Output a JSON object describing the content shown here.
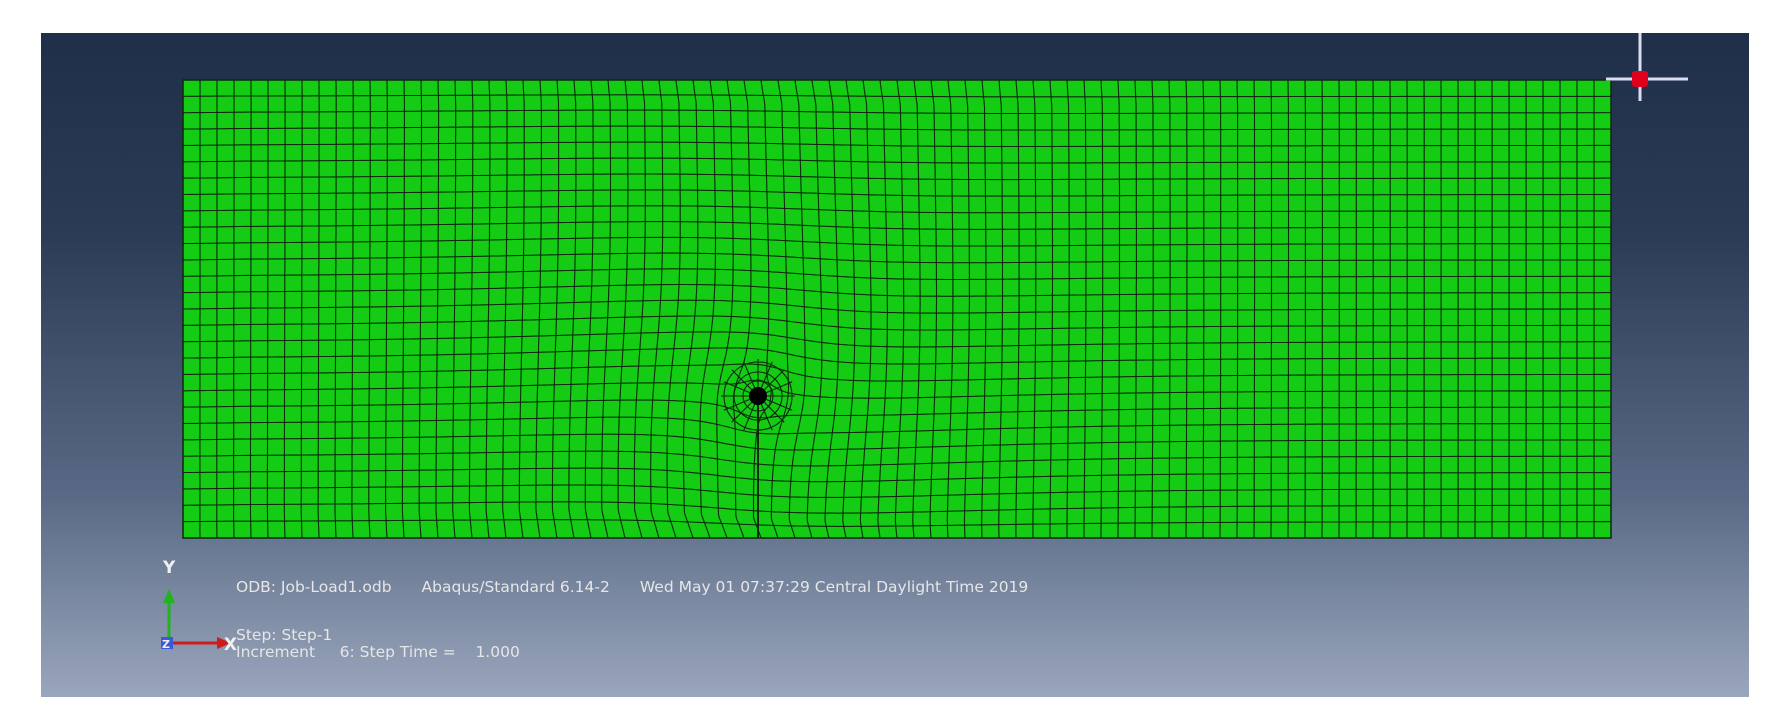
{
  "viewport": {
    "background_top": "#1f2f49",
    "background_bottom": "#9aa6bc",
    "mesh_fill": "#13cc13",
    "mesh_line": "#0a2a0a",
    "hole_color": "#000000",
    "marker_color": "#e0001b"
  },
  "info": {
    "odb_file": "ODB: Job-Load1.odb",
    "solver": "Abaqus/Standard 6.14-2",
    "timestamp": "Wed May 01 07:37:29 Central Daylight Time 2019",
    "step": "Step: Step-1",
    "increment": "Increment     6: Step Time =    1.000"
  },
  "triad": {
    "y_label": "Y",
    "x_label": "X",
    "z_label": "Z",
    "y_color": "#1fb51f",
    "x_color": "#d01b1b",
    "z_color": "#3a5bd9"
  }
}
